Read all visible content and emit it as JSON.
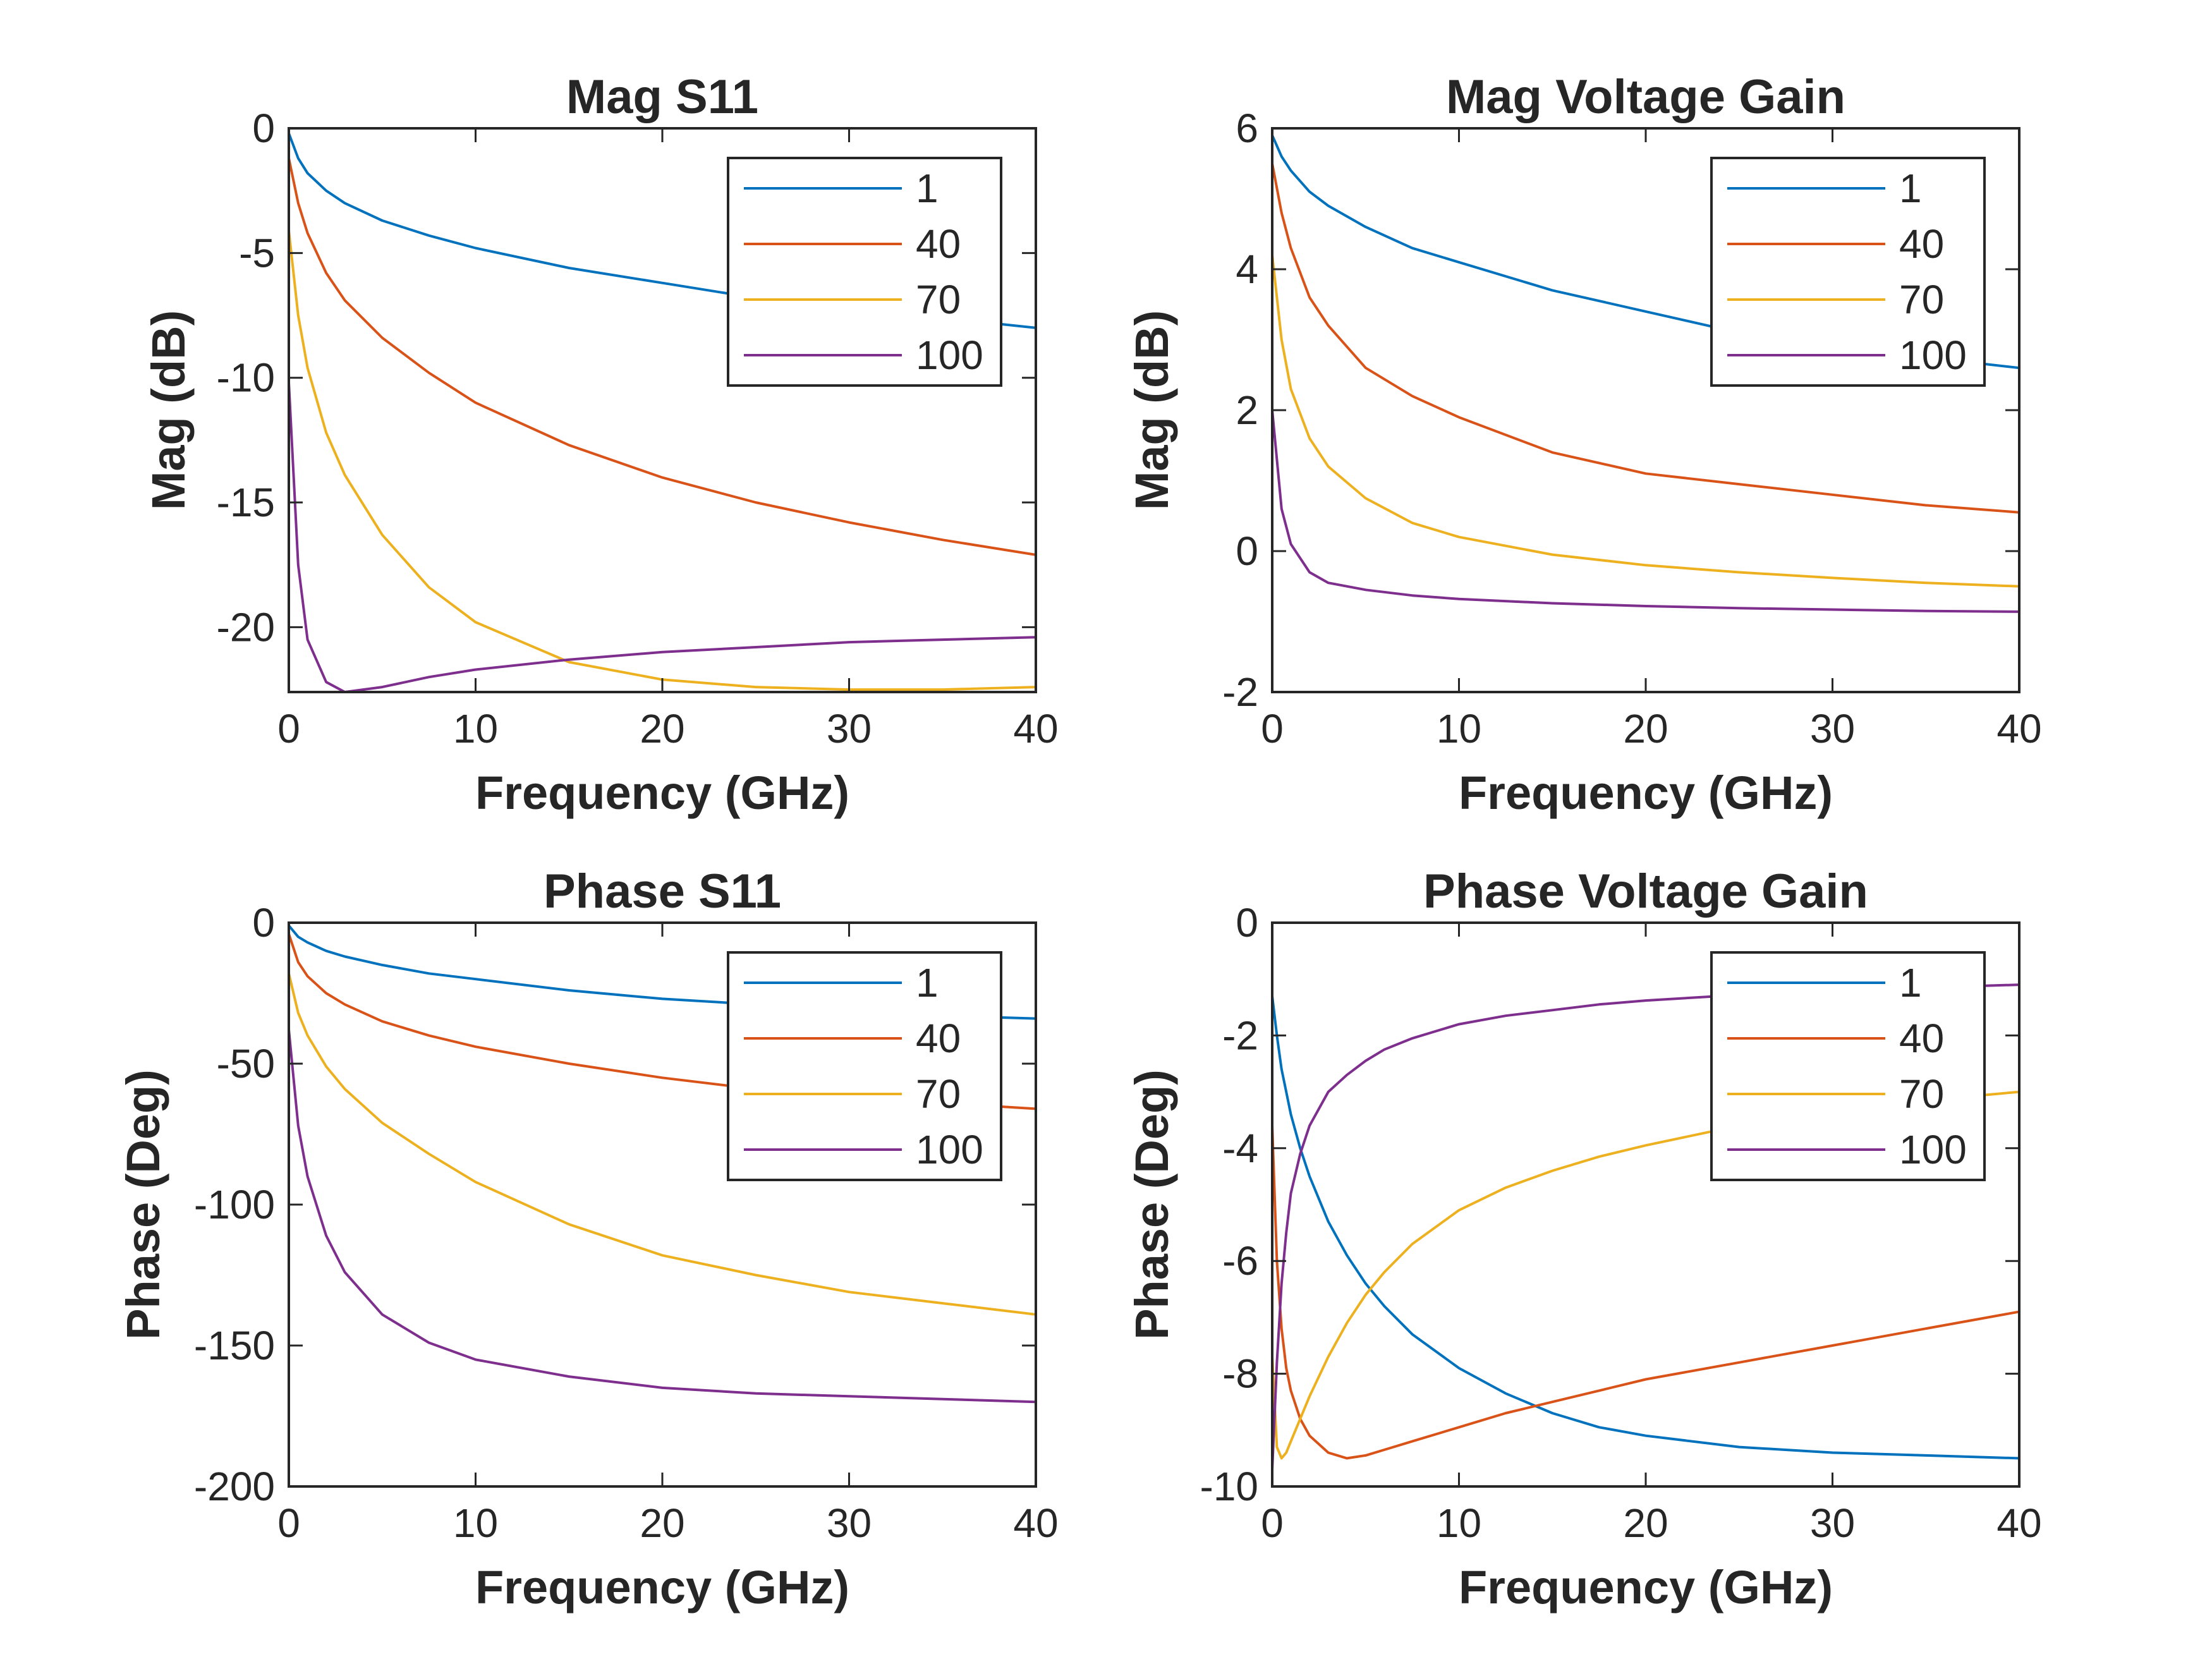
{
  "chart_data": [
    {
      "type": "line",
      "title": "Mag S11",
      "xlabel": "Frequency (GHz)",
      "ylabel": "Mag (dB)",
      "xlim": [
        0,
        40
      ],
      "ylim": [
        -22.6,
        0
      ],
      "xticks": [
        0,
        10,
        20,
        30,
        40
      ],
      "yticks": [
        -20,
        -15,
        -10,
        -5,
        0
      ],
      "grid": false,
      "legend_position": "top-right",
      "x": [
        0,
        0.5,
        1,
        2,
        3,
        5,
        7.5,
        10,
        15,
        20,
        25,
        30,
        35,
        40
      ],
      "series": [
        {
          "name": "1",
          "color": "#0072BD",
          "values": [
            -0.2,
            -1.2,
            -1.8,
            -2.5,
            -3.0,
            -3.7,
            -4.3,
            -4.8,
            -5.6,
            -6.2,
            -6.8,
            -7.2,
            -7.6,
            -8.0
          ]
        },
        {
          "name": "40",
          "color": "#D95319",
          "values": [
            -1.2,
            -3.0,
            -4.2,
            -5.8,
            -6.9,
            -8.4,
            -9.8,
            -11.0,
            -12.7,
            -14.0,
            -15.0,
            -15.8,
            -16.5,
            -17.1
          ]
        },
        {
          "name": "70",
          "color": "#EDB120",
          "values": [
            -4.1,
            -7.5,
            -9.6,
            -12.2,
            -13.9,
            -16.3,
            -18.4,
            -19.8,
            -21.4,
            -22.1,
            -22.4,
            -22.5,
            -22.5,
            -22.4
          ]
        },
        {
          "name": "100",
          "color": "#7E2F8E",
          "values": [
            -10.2,
            -17.5,
            -20.5,
            -22.2,
            -22.6,
            -22.4,
            -22.0,
            -21.7,
            -21.3,
            -21.0,
            -20.8,
            -20.6,
            -20.5,
            -20.4
          ]
        }
      ]
    },
    {
      "type": "line",
      "title": "Mag Voltage Gain",
      "xlabel": "Frequency (GHz)",
      "ylabel": "Mag (dB)",
      "xlim": [
        0,
        40
      ],
      "ylim": [
        -2,
        6
      ],
      "xticks": [
        0,
        10,
        20,
        30,
        40
      ],
      "yticks": [
        -2,
        0,
        2,
        4,
        6
      ],
      "grid": false,
      "legend_position": "top-right",
      "x": [
        0,
        0.5,
        1,
        2,
        3,
        5,
        7.5,
        10,
        15,
        20,
        25,
        30,
        35,
        40
      ],
      "series": [
        {
          "name": "1",
          "color": "#0072BD",
          "values": [
            5.9,
            5.6,
            5.4,
            5.1,
            4.9,
            4.6,
            4.3,
            4.1,
            3.7,
            3.4,
            3.1,
            2.9,
            2.75,
            2.6
          ]
        },
        {
          "name": "40",
          "color": "#D95319",
          "values": [
            5.5,
            4.8,
            4.3,
            3.6,
            3.2,
            2.6,
            2.2,
            1.9,
            1.4,
            1.1,
            0.95,
            0.8,
            0.65,
            0.55
          ]
        },
        {
          "name": "70",
          "color": "#EDB120",
          "values": [
            4.2,
            3.0,
            2.3,
            1.6,
            1.2,
            0.75,
            0.4,
            0.2,
            -0.05,
            -0.2,
            -0.3,
            -0.38,
            -0.45,
            -0.5
          ]
        },
        {
          "name": "100",
          "color": "#7E2F8E",
          "values": [
            2.0,
            0.6,
            0.1,
            -0.3,
            -0.45,
            -0.55,
            -0.63,
            -0.68,
            -0.74,
            -0.78,
            -0.81,
            -0.83,
            -0.85,
            -0.86
          ]
        }
      ]
    },
    {
      "type": "line",
      "title": "Phase S11",
      "xlabel": "Frequency (GHz)",
      "ylabel": "Phase (Deg)",
      "xlim": [
        0,
        40
      ],
      "ylim": [
        -200,
        0
      ],
      "xticks": [
        0,
        10,
        20,
        30,
        40
      ],
      "yticks": [
        -200,
        -150,
        -100,
        -50,
        0
      ],
      "grid": false,
      "legend_position": "top-right",
      "x": [
        0,
        0.5,
        1,
        2,
        3,
        5,
        7.5,
        10,
        15,
        20,
        25,
        30,
        35,
        40
      ],
      "series": [
        {
          "name": "1",
          "color": "#0072BD",
          "values": [
            -1,
            -5,
            -7,
            -10,
            -12,
            -15,
            -18,
            -20,
            -24,
            -27,
            -29,
            -31,
            -33,
            -34
          ]
        },
        {
          "name": "40",
          "color": "#D95319",
          "values": [
            -4,
            -14,
            -19,
            -25,
            -29,
            -35,
            -40,
            -44,
            -50,
            -55,
            -59,
            -62,
            -64,
            -66
          ]
        },
        {
          "name": "70",
          "color": "#EDB120",
          "values": [
            -18,
            -32,
            -40,
            -51,
            -59,
            -71,
            -82,
            -92,
            -107,
            -118,
            -125,
            -131,
            -135,
            -139
          ]
        },
        {
          "name": "100",
          "color": "#7E2F8E",
          "values": [
            -38,
            -72,
            -90,
            -111,
            -124,
            -139,
            -149,
            -155,
            -161,
            -165,
            -167,
            -168,
            -169,
            -170
          ]
        }
      ]
    },
    {
      "type": "line",
      "title": "Phase Voltage Gain",
      "xlabel": "Frequency (GHz)",
      "ylabel": "Phase (Deg)",
      "xlim": [
        0,
        40
      ],
      "ylim": [
        -10,
        0
      ],
      "xticks": [
        0,
        10,
        20,
        30,
        40
      ],
      "yticks": [
        -10,
        -8,
        -6,
        -4,
        -2,
        0
      ],
      "grid": false,
      "legend_position": "top-right",
      "x": [
        0,
        0.25,
        0.5,
        0.75,
        1,
        1.5,
        2,
        3,
        4,
        5,
        6,
        7.5,
        10,
        12.5,
        15,
        17.5,
        20,
        25,
        30,
        35,
        40
      ],
      "series": [
        {
          "name": "1",
          "color": "#0072BD",
          "values": [
            -1.3,
            -2.0,
            -2.6,
            -3.0,
            -3.4,
            -4.0,
            -4.5,
            -5.3,
            -5.9,
            -6.4,
            -6.8,
            -7.3,
            -7.9,
            -8.35,
            -8.7,
            -8.95,
            -9.1,
            -9.3,
            -9.4,
            -9.45,
            -9.5
          ]
        },
        {
          "name": "40",
          "color": "#D95319",
          "values": [
            -3.6,
            -6.0,
            -7.2,
            -7.9,
            -8.3,
            -8.8,
            -9.1,
            -9.4,
            -9.5,
            -9.45,
            -9.35,
            -9.2,
            -8.95,
            -8.7,
            -8.5,
            -8.3,
            -8.1,
            -7.8,
            -7.5,
            -7.2,
            -6.9
          ]
        },
        {
          "name": "70",
          "color": "#EDB120",
          "values": [
            -7.7,
            -9.3,
            -9.5,
            -9.4,
            -9.2,
            -8.8,
            -8.4,
            -7.7,
            -7.1,
            -6.6,
            -6.2,
            -5.7,
            -5.1,
            -4.7,
            -4.4,
            -4.15,
            -3.95,
            -3.6,
            -3.35,
            -3.15,
            -3.0
          ]
        },
        {
          "name": "100",
          "color": "#7E2F8E",
          "values": [
            -9.7,
            -7.8,
            -6.4,
            -5.5,
            -4.8,
            -4.1,
            -3.6,
            -3.0,
            -2.7,
            -2.45,
            -2.25,
            -2.05,
            -1.8,
            -1.65,
            -1.55,
            -1.45,
            -1.38,
            -1.28,
            -1.2,
            -1.15,
            -1.1
          ]
        }
      ]
    }
  ]
}
